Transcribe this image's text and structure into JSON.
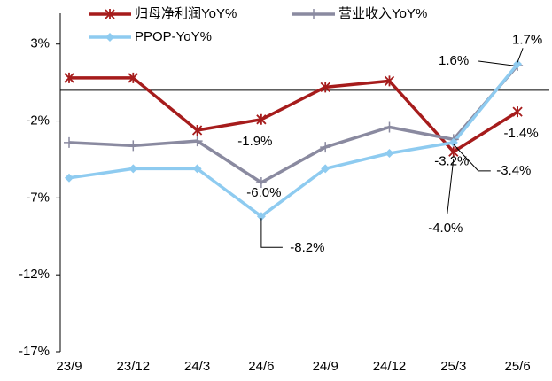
{
  "chart_data": {
    "type": "line",
    "categories": [
      "23/9",
      "23/12",
      "24/3",
      "24/6",
      "24/9",
      "24/12",
      "25/3",
      "25/6"
    ],
    "series": [
      {
        "name": "归母净利润YoY%",
        "color": "#a61c1c",
        "marker": "star",
        "values": [
          0.8,
          0.8,
          -2.6,
          -1.9,
          0.2,
          0.6,
          -4.0,
          -1.4
        ],
        "value_labels": [
          null,
          null,
          null,
          "-1.9%",
          null,
          null,
          "-4.0%",
          "-1.4%"
        ]
      },
      {
        "name": "营业收入YoY%",
        "color": "#8a8aa0",
        "marker": "plus",
        "values": [
          -3.4,
          -3.6,
          -3.3,
          -6.0,
          -3.7,
          -2.4,
          -3.2,
          1.6
        ],
        "value_labels": [
          null,
          null,
          null,
          "-6.0%",
          null,
          null,
          "-3.2%",
          "1.6%"
        ]
      },
      {
        "name": "PPOP-YoY%",
        "color": "#8ecbf0",
        "marker": "diamond",
        "values": [
          -5.7,
          -5.1,
          -5.1,
          -8.2,
          -5.1,
          -4.1,
          -3.4,
          1.7
        ],
        "value_labels": [
          null,
          null,
          null,
          "-8.2%",
          null,
          null,
          "-3.4%",
          "1.7%"
        ]
      }
    ],
    "ylim": [
      -17,
      5
    ],
    "yticks": [
      {
        "value": 3,
        "label": "3%"
      },
      {
        "value": -2,
        "label": "-2%"
      },
      {
        "value": -7,
        "label": "-7%"
      },
      {
        "value": -12,
        "label": "-12%"
      },
      {
        "value": -17,
        "label": "-17%"
      }
    ]
  }
}
